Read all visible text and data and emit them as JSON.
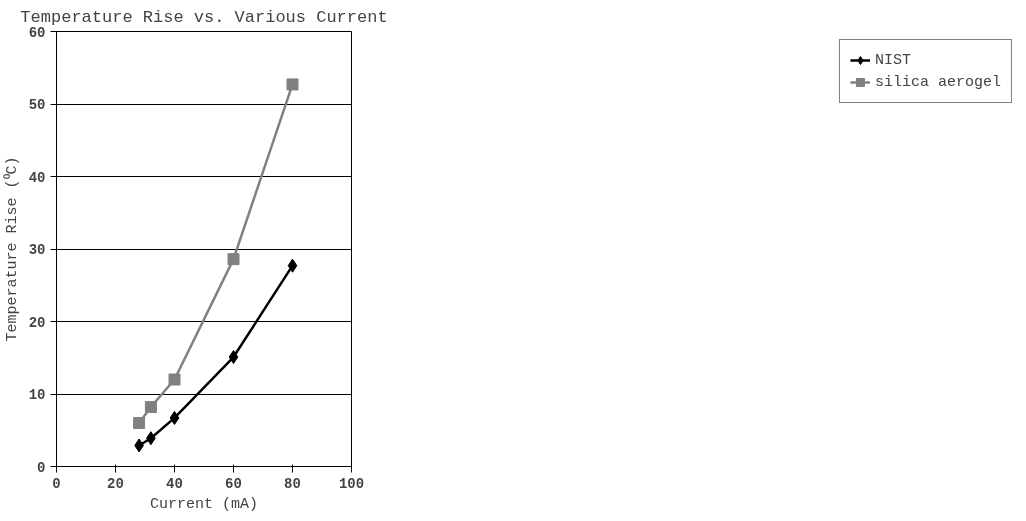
{
  "chart_data": {
    "type": "line",
    "title": "Temperature Rise vs. Various Current",
    "xlabel": "Current (mA)",
    "ylabel": "Temperature Rise (⁰C)",
    "x": [
      28,
      32,
      40,
      60,
      80
    ],
    "series": [
      {
        "name": "NIST",
        "color": "#000000",
        "marker": "diamond",
        "values": [
          2.9,
          3.9,
          6.7,
          15.1,
          27.7
        ]
      },
      {
        "name": "silica aerogel",
        "color": "#808080",
        "marker": "square",
        "values": [
          6.0,
          8.2,
          12.0,
          28.6,
          52.7
        ]
      }
    ],
    "xlim": [
      0,
      100
    ],
    "xticks": [
      0,
      20,
      40,
      60,
      80,
      100
    ],
    "ylim": [
      0,
      60
    ],
    "yticks": [
      0,
      10,
      20,
      30,
      40,
      50,
      60
    ],
    "grid": "y",
    "legend": "right",
    "line_style": "solid"
  }
}
